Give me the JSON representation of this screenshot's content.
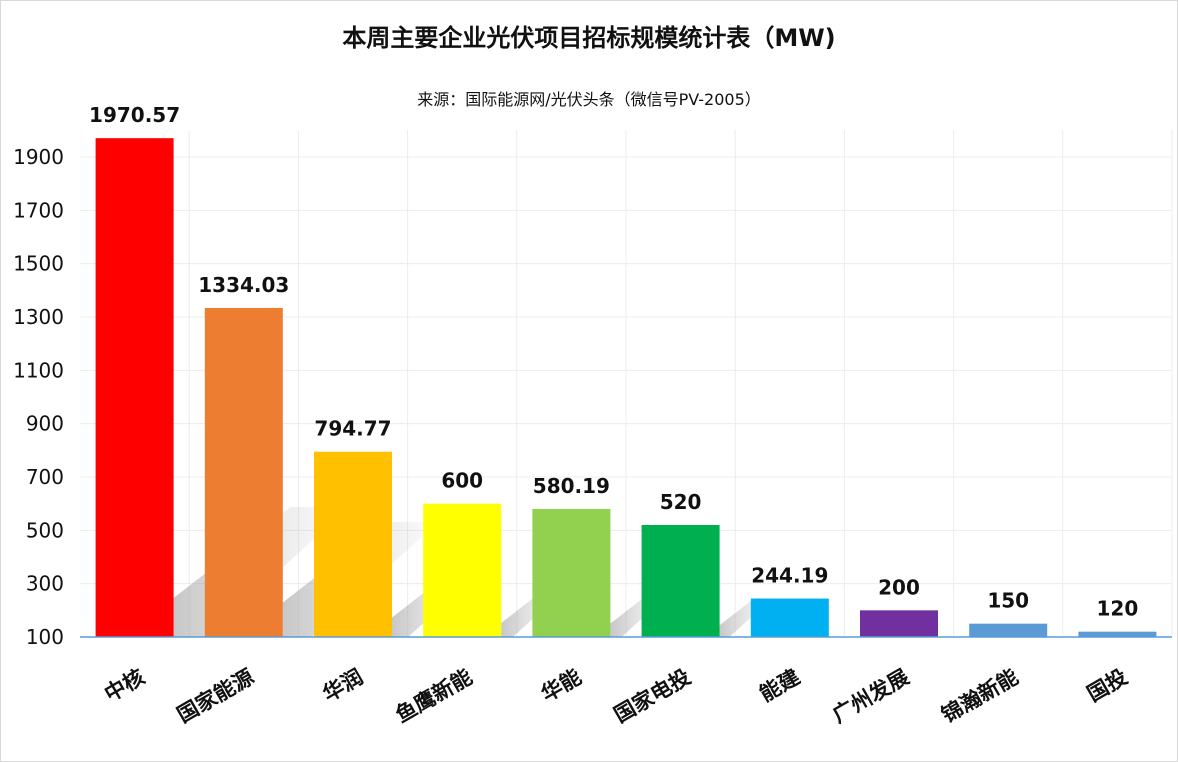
{
  "chart_data": {
    "type": "bar",
    "title": "本周主要企业光伏项目招标规模统计表（MW)",
    "subtitle": "来源：国际能源网/光伏头条（微信号PV-2005）",
    "categories": [
      "中核",
      "国家能源",
      "华润",
      "鱼鹰新能",
      "华能",
      "国家电投",
      "能建",
      "广州发展",
      "锦瀚新能",
      "国投"
    ],
    "values": [
      1970.57,
      1334.03,
      794.77,
      600,
      580.19,
      520,
      244.19,
      200,
      150,
      120
    ],
    "data_labels": [
      "1970.57",
      "1334.03",
      "794.77",
      "600",
      "580.19",
      "520",
      "244.19",
      "200",
      "150",
      "120"
    ],
    "colors": [
      "#ff0000",
      "#ed7d31",
      "#ffc000",
      "#ffff00",
      "#92d050",
      "#00b050",
      "#00b0f0",
      "#7030a0",
      "#5b9bd5",
      "#5b9bd5"
    ],
    "yticks": [
      100,
      300,
      500,
      700,
      900,
      1100,
      1300,
      1500,
      1700,
      1900
    ],
    "ylim": [
      100,
      2000
    ],
    "xlabel": "",
    "ylabel": "",
    "grid": true,
    "legend": "none"
  }
}
